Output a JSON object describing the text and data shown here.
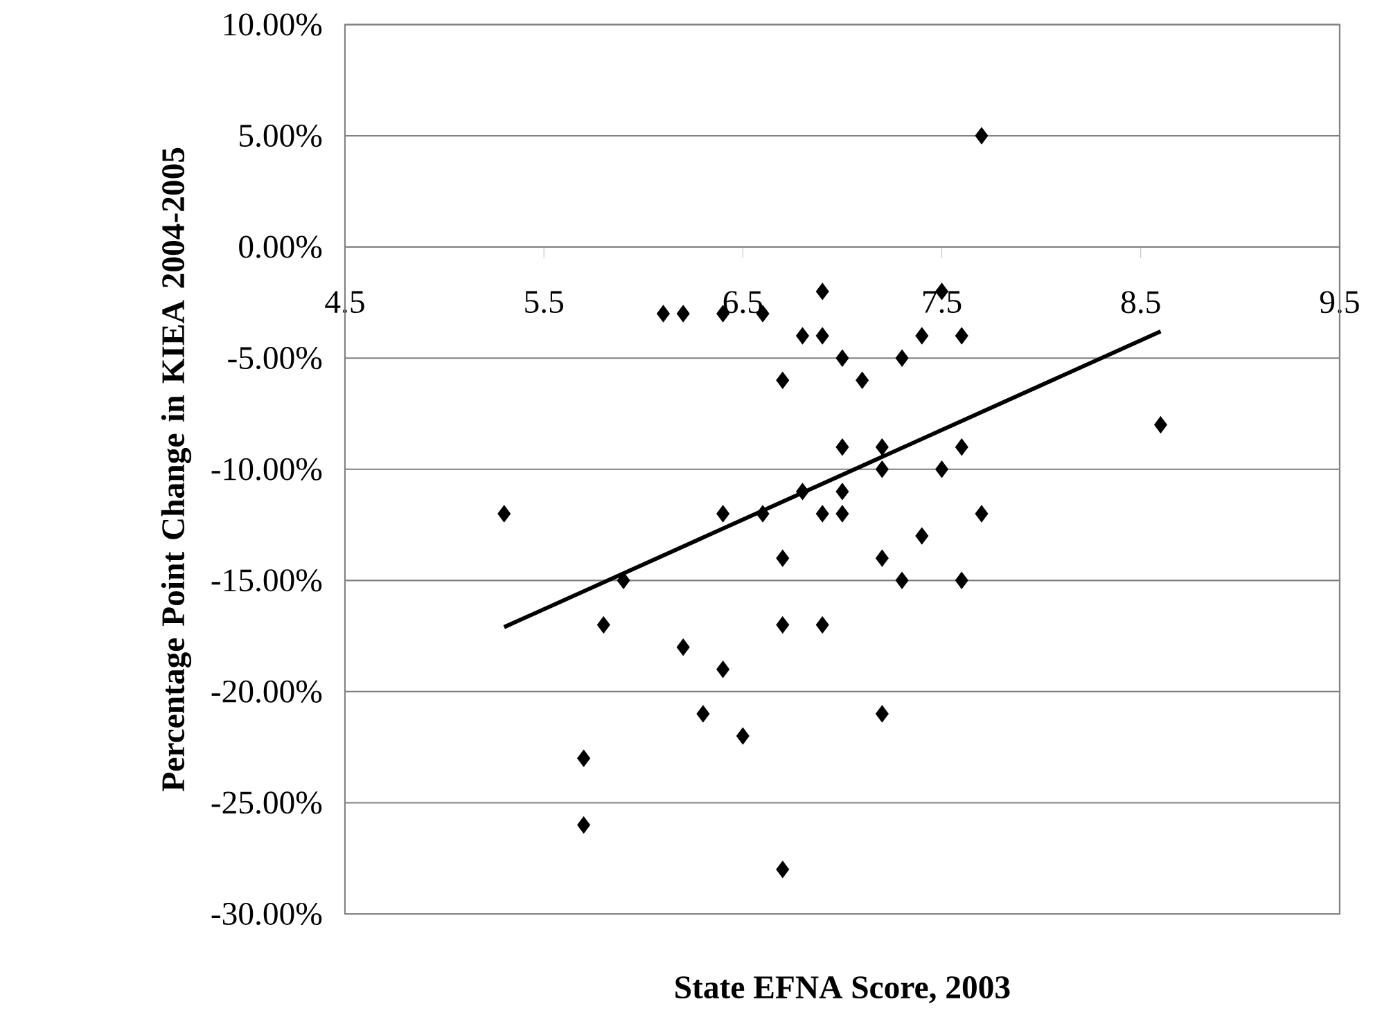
{
  "chart_data": {
    "type": "scatter",
    "xlabel": "State EFNA Score, 2003",
    "ylabel": "Percentage Point Change in KIEA 2004-2005",
    "xlim": [
      4.5,
      9.5
    ],
    "xticks": [
      4.5,
      5.5,
      6.5,
      7.5,
      8.5,
      9.5
    ],
    "ylim": [
      -30,
      10
    ],
    "yticks": [
      {
        "value": -30,
        "label": "-30.00%"
      },
      {
        "value": -25,
        "label": "-25.00%"
      },
      {
        "value": -20,
        "label": "-20.00%"
      },
      {
        "value": -15,
        "label": "-15.00%"
      },
      {
        "value": -10,
        "label": "-10.00%"
      },
      {
        "value": -5,
        "label": "-5.00%"
      },
      {
        "value": 0,
        "label": "0.00%"
      },
      {
        "value": 5,
        "label": "5.00%"
      },
      {
        "value": 10,
        "label": "10.00%"
      }
    ],
    "grid": "y",
    "series": [
      {
        "marker": "diamond",
        "color": "#000000",
        "x": [
          5.3,
          5.7,
          5.7,
          5.8,
          5.9,
          6.1,
          6.2,
          6.2,
          6.3,
          6.4,
          6.4,
          6.4,
          6.5,
          6.6,
          6.6,
          6.7,
          6.7,
          6.7,
          6.7,
          6.8,
          6.8,
          6.9,
          6.9,
          6.9,
          6.9,
          7.0,
          7.0,
          7.0,
          7.0,
          7.1,
          7.2,
          7.2,
          7.2,
          7.2,
          7.3,
          7.3,
          7.4,
          7.4,
          7.5,
          7.5,
          7.6,
          7.6,
          7.6,
          7.7,
          7.7,
          8.6
        ],
        "values": [
          -12,
          -23,
          -26,
          -17,
          -15,
          -3,
          -3,
          -18,
          -21,
          -3,
          -12,
          -19,
          -22,
          -3,
          -12,
          -6,
          -14,
          -17,
          -28,
          -4,
          -11,
          -2,
          -4,
          -12,
          -17,
          -5,
          -9,
          -11,
          -12,
          -6,
          -9,
          -10,
          -14,
          -21,
          -5,
          -15,
          -4,
          -13,
          -2,
          -10,
          -4,
          -9,
          -15,
          5,
          -12,
          -8
        ]
      },
      {
        "type": "line",
        "color": "#000000",
        "x": [
          5.3,
          8.6
        ],
        "values": [
          -17.1,
          -3.8
        ]
      }
    ]
  }
}
